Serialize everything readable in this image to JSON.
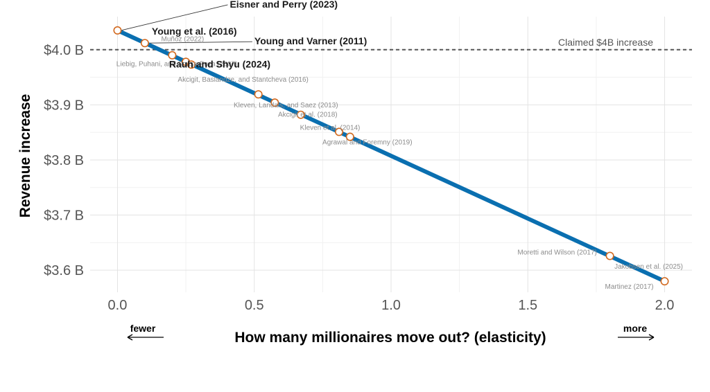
{
  "chart_data": {
    "type": "line",
    "title": "",
    "xlabel": "How many millionaires move out? (elasticity)",
    "ylabel": "Revenue increase",
    "xlim": [
      -0.1,
      2.1
    ],
    "ylim": [
      3.56,
      4.06
    ],
    "x_ticks": [
      0.0,
      0.5,
      1.0,
      1.5,
      2.0
    ],
    "x_tick_labels": [
      "0.0",
      "0.5",
      "1.0",
      "1.5",
      "2.0"
    ],
    "y_ticks": [
      3.6,
      3.7,
      3.8,
      3.9,
      4.0
    ],
    "y_tick_labels": [
      "$3.6 B",
      "$3.7 B",
      "$3.8 B",
      "$3.9 B",
      "$4.0 B"
    ],
    "grid": true,
    "line": {
      "x": [
        0.0,
        2.0
      ],
      "y": [
        4.035,
        3.58
      ],
      "color": "#0a6fb0"
    },
    "reference_line": {
      "y": 4.0,
      "label": "Claimed $4B increase"
    },
    "arrows": {
      "left_label": "fewer",
      "right_label": "more"
    },
    "point_style": {
      "fill": "#ffffff",
      "stroke": "#d2691e"
    },
    "points": [
      {
        "x": 0.0,
        "y": 4.035,
        "label": "Eisner and Perry (2023)",
        "emphasis": true
      },
      {
        "x": 0.1,
        "y": 4.012,
        "label": "Young et al. (2016)",
        "emphasis": true
      },
      {
        "x": 0.1,
        "y": 4.012,
        "label": "Young and Varner (2011)",
        "emphasis": true
      },
      {
        "x": 0.2,
        "y": 3.99,
        "label": "Muñoz (2022)",
        "emphasis": false
      },
      {
        "x": 0.25,
        "y": 3.978,
        "label": "Liebig, Puhani, and Sousa-Poza (2007)",
        "emphasis": false
      },
      {
        "x": 0.27,
        "y": 3.973,
        "label": "Rauh and Shyu (2024)",
        "emphasis": true
      },
      {
        "x": 0.515,
        "y": 3.919,
        "label": "Akcigit, Baslandze, and Stantcheva (2016)",
        "emphasis": false
      },
      {
        "x": 0.575,
        "y": 3.904,
        "label": "Kleven, Landais, and Saez (2013)",
        "emphasis": false
      },
      {
        "x": 0.67,
        "y": 3.882,
        "label": "Akcigit et al. (2018)",
        "emphasis": false
      },
      {
        "x": 0.81,
        "y": 3.851,
        "label": "Kleven et al. (2014)",
        "emphasis": false
      },
      {
        "x": 0.85,
        "y": 3.842,
        "label": "Agrawal and Foremny (2019)",
        "emphasis": false
      },
      {
        "x": 1.8,
        "y": 3.626,
        "label": "Moretti and Wilson (2017)",
        "emphasis": false
      },
      {
        "x": 2.0,
        "y": 3.58,
        "label": "Jakobsen et al. (2025)",
        "emphasis": false
      },
      {
        "x": 2.0,
        "y": 3.58,
        "label": "Martinez (2017)",
        "emphasis": false
      }
    ]
  }
}
